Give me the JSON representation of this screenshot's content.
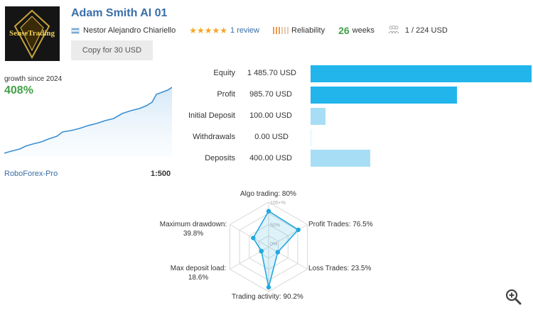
{
  "header": {
    "title": "Adam Smith AI 01",
    "logo_text": "SenseTrading",
    "author": "Nestor Alejandro Chiariello",
    "stars": "★★★★★",
    "reviews": "1 review",
    "reliability_label": "Reliability",
    "weeks_value": "26",
    "weeks_label": "weeks",
    "subscribers": "1 / 224 USD",
    "copy_button": "Copy for 30 USD"
  },
  "growth": {
    "label": "growth since 2024",
    "value": "408%",
    "broker": "RoboForex-Pro",
    "leverage": "1:500"
  },
  "stats": [
    {
      "label": "Equity",
      "value": "1 485.70 USD",
      "amount": 1485.7,
      "color": "#21b5ec"
    },
    {
      "label": "Profit",
      "value": "985.70 USD",
      "amount": 985.7,
      "color": "#21b5ec"
    },
    {
      "label": "Initial Deposit",
      "value": "100.00 USD",
      "amount": 100.0,
      "color": "#a7def6"
    },
    {
      "label": "Withdrawals",
      "value": "0.00 USD",
      "amount": 0.0,
      "color": "#a7def6"
    },
    {
      "label": "Deposits",
      "value": "400.00 USD",
      "amount": 400.0,
      "color": "#a7def6"
    }
  ],
  "radar": {
    "scale_100": "100+%",
    "scale_50": "50%",
    "scale_0": "0%",
    "algo": {
      "label": "Algo trading: 80%",
      "value": 80
    },
    "profit_trades": {
      "label": "Profit Trades: 76.5%",
      "value": 76.5
    },
    "loss_trades": {
      "label": "Loss Trades: 23.5%",
      "value": 23.5
    },
    "activity": {
      "label": "Trading activity: 90.2%",
      "value": 90.2
    },
    "deposit_load_line1": "Max deposit load:",
    "deposit_load_line2": "18.6%",
    "deposit_load_value": 18.6,
    "drawdown_line1": "Maximum drawdown:",
    "drawdown_line2": "39.8%",
    "drawdown_value": 39.8
  },
  "colors": {
    "title": "#3a6ea8",
    "green": "#43a047",
    "bar_strong": "#21b5ec",
    "bar_light": "#a7def6",
    "radar": "#21a8e0"
  }
}
